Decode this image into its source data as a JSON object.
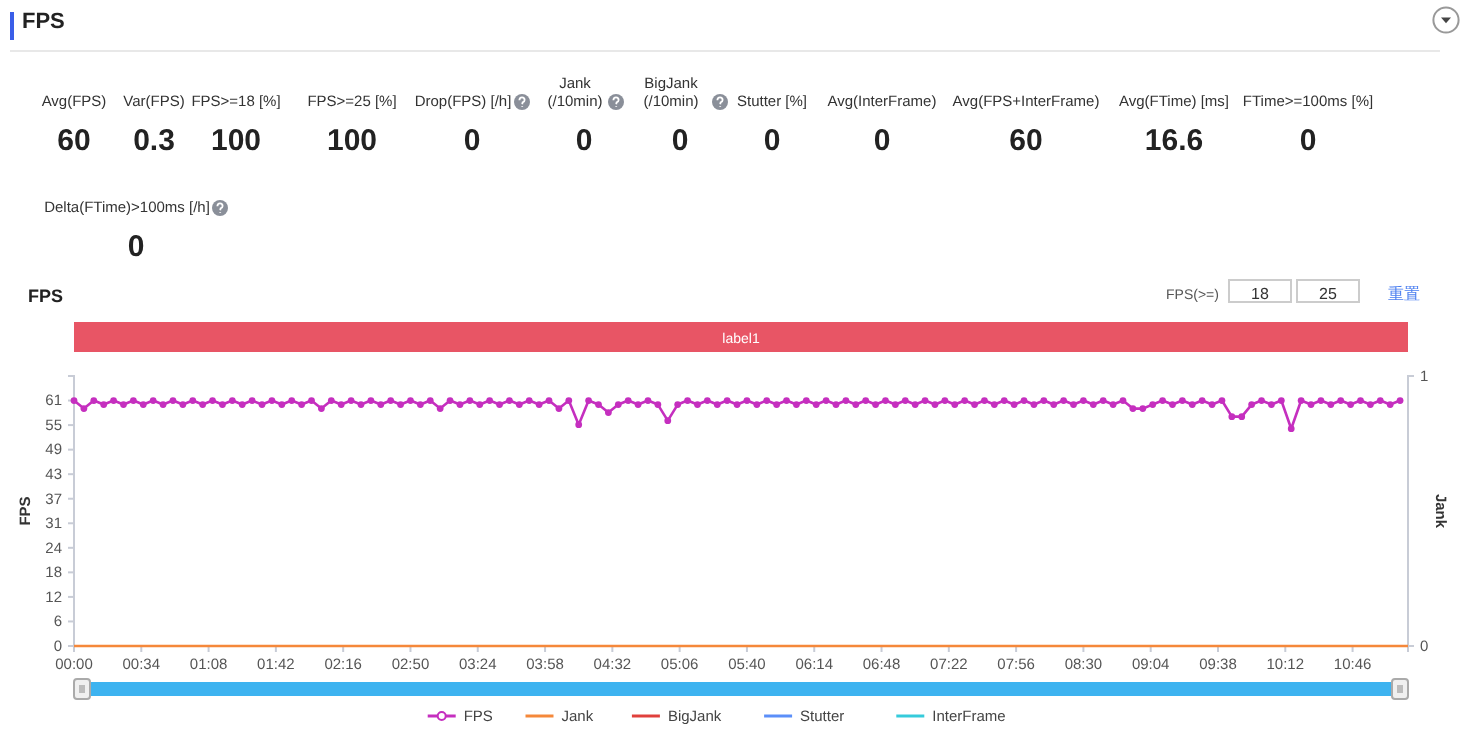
{
  "chart_data": [
    {
      "type": "other",
      "title": "FPS",
      "annotations": [
        "Avg(FPS)",
        "60",
        "Var(FPS)",
        "0.3",
        "FPS>=18 [%]",
        "100",
        "FPS>=25 [%]",
        "100",
        "Drop(FPS) [/h]",
        "0",
        "Jank (/10min)",
        "0",
        "BigJank (/10min)",
        "0",
        "Stutter [%]",
        "0",
        "Avg(InterFrame)",
        "0",
        "Avg(FPS+InterFrame)",
        "60",
        "Avg(FTime) [ms]",
        "16.6",
        "FTime>=100ms [%]",
        "0",
        "Delta(FTime)>100ms [/h]",
        "0"
      ]
    },
    {
      "type": "line",
      "title": "FPS",
      "ylabel": "FPS",
      "y2label": "Jank",
      "annotations": [
        "FPS(>=)",
        "18",
        "25",
        "重置",
        "label1"
      ],
      "xlim": [
        0,
        674
      ],
      "xticks": [
        {
          "value": 0,
          "label": "00:00"
        },
        {
          "value": 34,
          "label": "00:34"
        },
        {
          "value": 68,
          "label": "01:08"
        },
        {
          "value": 102,
          "label": "01:42"
        },
        {
          "value": 136,
          "label": "02:16"
        },
        {
          "value": 170,
          "label": "02:50"
        },
        {
          "value": 204,
          "label": "03:24"
        },
        {
          "value": 238,
          "label": "03:58"
        },
        {
          "value": 272,
          "label": "04:32"
        },
        {
          "value": 306,
          "label": "05:06"
        },
        {
          "value": 340,
          "label": "05:40"
        },
        {
          "value": 374,
          "label": "06:14"
        },
        {
          "value": 408,
          "label": "06:48"
        },
        {
          "value": 442,
          "label": "07:22"
        },
        {
          "value": 476,
          "label": "07:56"
        },
        {
          "value": 510,
          "label": "08:30"
        },
        {
          "value": 544,
          "label": "09:04"
        },
        {
          "value": 578,
          "label": "09:38"
        },
        {
          "value": 612,
          "label": "10:12"
        },
        {
          "value": 646,
          "label": "10:46"
        }
      ],
      "ylim": [
        0,
        67.1
      ],
      "yticks": [
        0,
        {
          "value": 6.1,
          "label": "6"
        },
        {
          "value": 12.2,
          "label": "12"
        },
        {
          "value": 18.3,
          "label": "18"
        },
        {
          "value": 24.4,
          "label": "24"
        },
        {
          "value": 30.5,
          "label": "31"
        },
        {
          "value": 36.6,
          "label": "37"
        },
        {
          "value": 42.7,
          "label": "43"
        },
        {
          "value": 48.8,
          "label": "49"
        },
        {
          "value": 54.9,
          "label": "55"
        },
        61
      ],
      "y2lim": [
        0,
        1
      ],
      "y2ticks": [
        0,
        1
      ],
      "legend": "bottom",
      "series": [
        {
          "name": "FPS",
          "color": "#c52fbf",
          "marker": "circle",
          "x": [
            0,
            5,
            10,
            15,
            20,
            25,
            30,
            35,
            40,
            45,
            50,
            55,
            60,
            65,
            70,
            75,
            80,
            85,
            90,
            95,
            100,
            105,
            110,
            115,
            120,
            125,
            130,
            135,
            140,
            145,
            150,
            155,
            160,
            165,
            170,
            175,
            180,
            185,
            190,
            195,
            200,
            205,
            210,
            215,
            220,
            225,
            230,
            235,
            240,
            245,
            250,
            255,
            260,
            265,
            270,
            275,
            280,
            285,
            290,
            295,
            300,
            305,
            310,
            315,
            320,
            325,
            330,
            335,
            340,
            345,
            350,
            355,
            360,
            365,
            370,
            375,
            380,
            385,
            390,
            395,
            400,
            405,
            410,
            415,
            420,
            425,
            430,
            435,
            440,
            445,
            450,
            455,
            460,
            465,
            470,
            475,
            480,
            485,
            490,
            495,
            500,
            505,
            510,
            515,
            520,
            525,
            530,
            535,
            540,
            545,
            550,
            555,
            560,
            565,
            570,
            575,
            580,
            585,
            590,
            595,
            600,
            605,
            610,
            615,
            620,
            625,
            630,
            635,
            640,
            645,
            650,
            655,
            660,
            665,
            670
          ],
          "values": [
            61,
            59,
            61,
            60,
            61,
            60,
            61,
            60,
            61,
            60,
            61,
            60,
            61,
            60,
            61,
            60,
            61,
            60,
            61,
            60,
            61,
            60,
            61,
            60,
            61,
            59,
            61,
            60,
            61,
            60,
            61,
            60,
            61,
            60,
            61,
            60,
            61,
            59,
            61,
            60,
            61,
            60,
            61,
            60,
            61,
            60,
            61,
            60,
            61,
            59,
            61,
            55,
            61,
            60,
            58,
            60,
            61,
            60,
            61,
            60,
            56,
            60,
            61,
            60,
            61,
            60,
            61,
            60,
            61,
            60,
            61,
            60,
            61,
            60,
            61,
            60,
            61,
            60,
            61,
            60,
            61,
            60,
            61,
            60,
            61,
            60,
            61,
            60,
            61,
            60,
            61,
            60,
            61,
            60,
            61,
            60,
            61,
            60,
            61,
            60,
            61,
            60,
            61,
            60,
            61,
            60,
            61,
            59,
            59,
            60,
            61,
            60,
            61,
            60,
            61,
            60,
            61,
            57,
            57,
            60,
            61,
            60,
            61,
            54,
            61,
            60,
            61,
            60,
            61,
            60,
            61,
            60,
            61,
            60,
            61
          ]
        },
        {
          "name": "Jank",
          "color": "#f5883a",
          "marker": "none",
          "x": [
            0,
            674
          ],
          "values": [
            0,
            0
          ]
        },
        {
          "name": "BigJank",
          "color": "#e0403c",
          "marker": "none"
        },
        {
          "name": "Stutter",
          "color": "#5b8ff9",
          "marker": "none"
        },
        {
          "name": "InterFrame",
          "color": "#36cbdb",
          "marker": "none"
        }
      ]
    }
  ]
}
